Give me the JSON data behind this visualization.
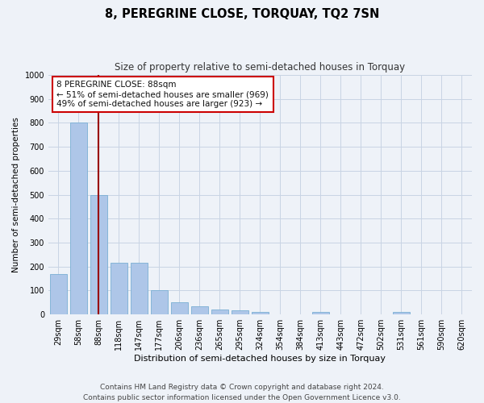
{
  "title": "8, PEREGRINE CLOSE, TORQUAY, TQ2 7SN",
  "subtitle": "Size of property relative to semi-detached houses in Torquay",
  "xlabel": "Distribution of semi-detached houses by size in Torquay",
  "ylabel": "Number of semi-detached properties",
  "categories": [
    "29sqm",
    "58sqm",
    "88sqm",
    "118sqm",
    "147sqm",
    "177sqm",
    "206sqm",
    "236sqm",
    "265sqm",
    "295sqm",
    "324sqm",
    "354sqm",
    "384sqm",
    "413sqm",
    "443sqm",
    "472sqm",
    "502sqm",
    "531sqm",
    "561sqm",
    "590sqm",
    "620sqm"
  ],
  "values": [
    170,
    800,
    500,
    215,
    215,
    100,
    52,
    35,
    20,
    18,
    10,
    0,
    0,
    10,
    0,
    0,
    0,
    10,
    0,
    0,
    0
  ],
  "bar_color": "#aec6e8",
  "bar_edge_color": "#7aafd4",
  "highlight_index": 2,
  "highlight_line_color": "#990000",
  "grid_color": "#c8d4e4",
  "background_color": "#eef2f8",
  "annotation_line1": "8 PEREGRINE CLOSE: 88sqm",
  "annotation_line2": "← 51% of semi-detached houses are smaller (969)",
  "annotation_line3": "49% of semi-detached houses are larger (923) →",
  "annotation_box_color": "#ffffff",
  "annotation_box_edge": "#cc0000",
  "ylim": [
    0,
    1000
  ],
  "yticks": [
    0,
    100,
    200,
    300,
    400,
    500,
    600,
    700,
    800,
    900,
    1000
  ],
  "footer": "Contains HM Land Registry data © Crown copyright and database right 2024.\nContains public sector information licensed under the Open Government Licence v3.0.",
  "title_fontsize": 10.5,
  "subtitle_fontsize": 8.5,
  "xlabel_fontsize": 8,
  "ylabel_fontsize": 7.5,
  "tick_fontsize": 7,
  "annotation_fontsize": 7.5,
  "footer_fontsize": 6.5
}
